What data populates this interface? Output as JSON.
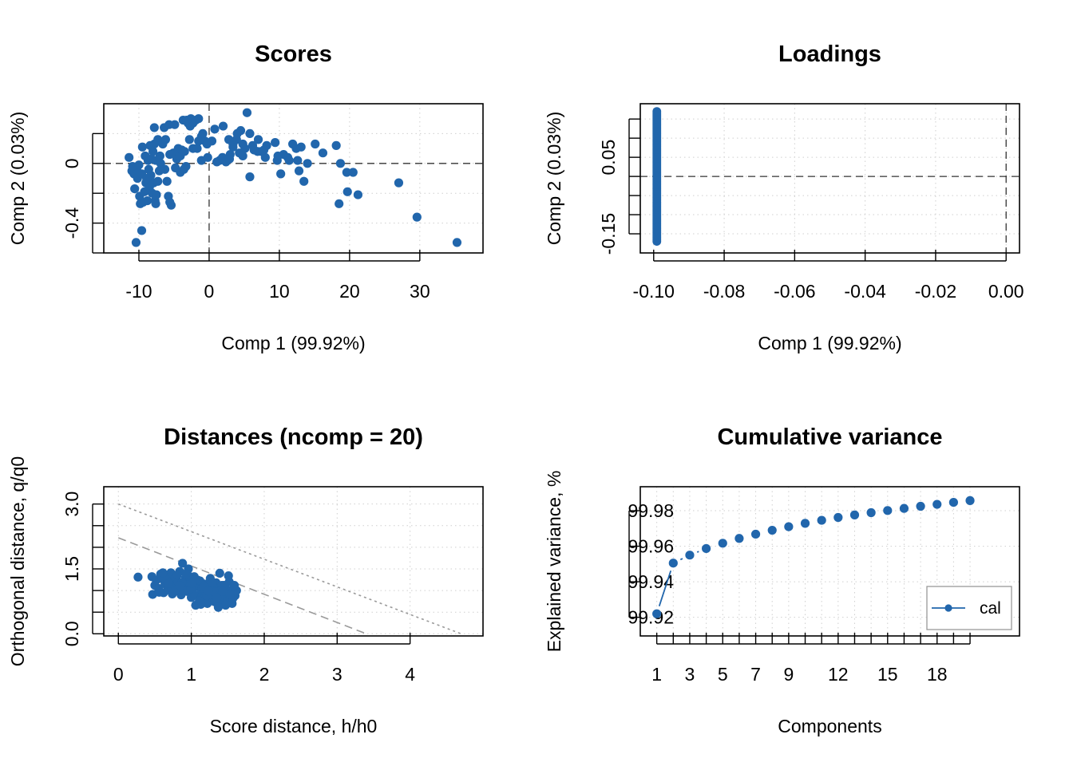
{
  "colors": {
    "series": "#2166ac",
    "limit": "#9a9a9a",
    "reference": "#333333"
  },
  "chart_data": [
    {
      "type": "scatter",
      "title": "Scores",
      "xlabel": "Comp 1 (99.92%)",
      "ylabel": "Comp 2 (0.03%)",
      "xlim": [
        -15,
        39
      ],
      "ylim": [
        -0.6,
        0.4
      ],
      "xticks": [
        -10,
        0,
        10,
        20,
        30
      ],
      "yticks": [
        -0.4,
        0.0
      ],
      "yticks_minor": [
        -0.6,
        -0.4,
        -0.2,
        0.0,
        0.2
      ],
      "reference_lines": {
        "x": 0,
        "y": 0
      },
      "grid": true,
      "points": [
        [
          -11.4,
          0.04
        ],
        [
          -11.0,
          -0.05
        ],
        [
          -10.7,
          -0.07
        ],
        [
          -10.6,
          -0.17
        ],
        [
          -10.3,
          -0.04
        ],
        [
          -10.2,
          -0.1
        ],
        [
          -10.0,
          -0.01
        ],
        [
          -9.9,
          -0.22
        ],
        [
          -9.6,
          -0.07
        ],
        [
          -9.4,
          -0.26
        ],
        [
          -9.2,
          -0.19
        ],
        [
          -9.0,
          -0.13
        ],
        [
          -8.8,
          -0.25
        ],
        [
          -8.6,
          -0.04
        ],
        [
          -8.5,
          -0.16
        ],
        [
          -8.3,
          -0.08
        ],
        [
          -8.1,
          -0.2
        ],
        [
          -7.9,
          -0.13
        ],
        [
          -7.7,
          -0.25
        ],
        [
          -7.6,
          -0.27
        ],
        [
          -7.5,
          -0.21
        ],
        [
          -7.3,
          -0.12
        ],
        [
          -9.5,
          0.11
        ],
        [
          -9.1,
          0.05
        ],
        [
          -8.7,
          0.02
        ],
        [
          -8.4,
          0.12
        ],
        [
          -8.2,
          0.03
        ],
        [
          -8.0,
          0.08
        ],
        [
          -7.8,
          0.13
        ],
        [
          -7.6,
          0.02
        ],
        [
          -7.3,
          0.16
        ],
        [
          -6.9,
          0.0
        ],
        [
          -6.6,
          0.13
        ],
        [
          -6.3,
          -0.04
        ],
        [
          -6.0,
          -0.12
        ],
        [
          -5.8,
          -0.22
        ],
        [
          -5.6,
          -0.26
        ],
        [
          -5.4,
          -0.28
        ],
        [
          -7.8,
          0.24
        ],
        [
          -6.4,
          0.24
        ],
        [
          -5.7,
          0.26
        ],
        [
          -4.9,
          0.26
        ],
        [
          -4.4,
          0.1
        ],
        [
          -4.1,
          0.05
        ],
        [
          -3.7,
          0.29
        ],
        [
          -3.3,
          -0.02
        ],
        [
          -3.0,
          0.27
        ],
        [
          -2.6,
          0.3
        ],
        [
          -2.3,
          0.27
        ],
        [
          -1.9,
          0.29
        ],
        [
          -1.5,
          0.3
        ],
        [
          -5.6,
          0.06
        ],
        [
          -5.1,
          0.07
        ],
        [
          -4.6,
          0.03
        ],
        [
          -4.2,
          0.05
        ],
        [
          -3.9,
          0.09
        ],
        [
          -3.5,
          0.08
        ],
        [
          -2.8,
          0.16
        ],
        [
          -2.3,
          0.1
        ],
        [
          -1.7,
          0.1
        ],
        [
          -1.1,
          0.18
        ],
        [
          -0.6,
          0.15
        ],
        [
          -0.3,
          0.13
        ],
        [
          0.4,
          0.15
        ],
        [
          -4.8,
          -0.03
        ],
        [
          -4.1,
          -0.06
        ],
        [
          -3.6,
          -0.04
        ],
        [
          -1.1,
          0.02
        ],
        [
          -0.2,
          0.04
        ],
        [
          0.8,
          0.23
        ],
        [
          1.1,
          0.01
        ],
        [
          1.9,
          0.04
        ],
        [
          2.4,
          0.01
        ],
        [
          2.8,
          0.16
        ],
        [
          3.4,
          0.11
        ],
        [
          4.0,
          0.2
        ],
        [
          4.5,
          0.22
        ],
        [
          4.3,
          0.07
        ],
        [
          5.1,
          0.1
        ],
        [
          5.4,
          0.34
        ],
        [
          5.8,
          -0.09
        ],
        [
          6.4,
          0.09
        ],
        [
          7.0,
          0.16
        ],
        [
          7.4,
          0.08
        ],
        [
          8.2,
          0.12
        ],
        [
          9.4,
          0.14
        ],
        [
          9.7,
          0.02
        ],
        [
          10.2,
          -0.07
        ],
        [
          10.6,
          0.06
        ],
        [
          11.2,
          0.04
        ],
        [
          11.9,
          0.13
        ],
        [
          12.4,
          0.1
        ],
        [
          12.8,
          -0.05
        ],
        [
          13.1,
          0.11
        ],
        [
          13.5,
          -0.12
        ],
        [
          15.1,
          0.13
        ],
        [
          16.2,
          0.07
        ],
        [
          18.1,
          0.12
        ],
        [
          18.7,
          0.0
        ],
        [
          19.6,
          -0.06
        ],
        [
          19.7,
          -0.19
        ],
        [
          20.5,
          -0.06
        ],
        [
          21.2,
          -0.21
        ],
        [
          18.5,
          -0.27
        ],
        [
          27.0,
          -0.13
        ],
        [
          29.6,
          -0.36
        ],
        [
          35.3,
          -0.53
        ],
        [
          -10.4,
          -0.53
        ],
        [
          -9.6,
          -0.45
        ],
        [
          -9.8,
          -0.27
        ],
        [
          2.0,
          0.25
        ],
        [
          3.4,
          0.13
        ],
        [
          -2.7,
          0.25
        ],
        [
          3.0,
          0.06
        ],
        [
          4.8,
          0.05
        ],
        [
          1.5,
          0.02
        ],
        [
          8.0,
          0.04
        ],
        [
          -0.9,
          0.2
        ],
        [
          6.2,
          0.12
        ],
        [
          3.9,
          0.16
        ],
        [
          -6.2,
          0.16
        ],
        [
          -7.0,
          0.05
        ],
        [
          -10.9,
          -0.02
        ],
        [
          -8.9,
          -0.1
        ],
        [
          -7.1,
          -0.05
        ],
        [
          9.8,
          0.05
        ],
        [
          11.4,
          0.02
        ],
        [
          4.8,
          0.13
        ],
        [
          2.9,
          0.03
        ],
        [
          5.8,
          0.2
        ],
        [
          7.8,
          0.09
        ],
        [
          14.0,
          0.0
        ],
        [
          -1.5,
          0.15
        ],
        [
          6.9,
          0.08
        ],
        [
          12.6,
          0.02
        ],
        [
          -3.2,
          0.29
        ]
      ]
    },
    {
      "type": "scatter",
      "title": "Loadings",
      "xlabel": "Comp 1 (99.92%)",
      "ylabel": "Comp 2 (0.03%)",
      "xlim": [
        -0.1038,
        0.0038
      ],
      "ylim": [
        -0.2,
        0.19
      ],
      "xticks": [
        -0.1,
        -0.08,
        -0.06,
        -0.04,
        -0.02,
        0.0
      ],
      "xtick_labels": [
        "-0.10",
        "-0.08",
        "-0.06",
        "-0.04",
        "-0.02",
        "0.00"
      ],
      "yticks": [
        -0.15,
        0.05
      ],
      "yticks_minor": [
        -0.15,
        -0.1,
        -0.05,
        0.0,
        0.05,
        0.1,
        0.15
      ],
      "reference_lines": {
        "x": 0,
        "y": 0
      },
      "grid": true,
      "x_value": -0.0991,
      "y_range": [
        -0.17,
        0.17
      ],
      "n_points": 90
    },
    {
      "type": "scatter",
      "title": "Distances (ncomp = 20)",
      "xlabel": "Score distance, h/h0",
      "ylabel": "Orthogonal distance, q/q0",
      "xlim": [
        -0.2,
        5.0
      ],
      "ylim": [
        -0.05,
        3.4
      ],
      "xticks": [
        0,
        1,
        2,
        3,
        4
      ],
      "yticks": [
        0.0,
        1.5,
        3.0
      ],
      "ytick_labels": [
        "0.0",
        "1.5",
        "3.0"
      ],
      "yticks_minor": [
        0.0,
        0.5,
        1.0,
        1.5,
        2.0,
        2.5,
        3.0
      ],
      "grid": true,
      "limit_lines": [
        {
          "style": "dashed",
          "x": [
            0,
            3.4
          ],
          "y": [
            2.22,
            0.0
          ]
        },
        {
          "style": "dotted",
          "x": [
            0,
            4.7
          ],
          "y": [
            3.0,
            0.0
          ]
        }
      ],
      "points": [
        [
          0.27,
          1.31
        ],
        [
          0.46,
          1.32
        ],
        [
          0.47,
          0.91
        ],
        [
          0.5,
          1.12
        ],
        [
          0.52,
          1.24
        ],
        [
          0.55,
          1.05
        ],
        [
          0.58,
          1.38
        ],
        [
          0.6,
          1.27
        ],
        [
          0.62,
          0.95
        ],
        [
          0.64,
          1.15
        ],
        [
          0.66,
          1.34
        ],
        [
          0.68,
          1.02
        ],
        [
          0.7,
          1.22
        ],
        [
          0.72,
          1.41
        ],
        [
          0.74,
          0.92
        ],
        [
          0.76,
          1.12
        ],
        [
          0.78,
          1.3
        ],
        [
          0.8,
          1.02
        ],
        [
          0.82,
          1.2
        ],
        [
          0.84,
          1.44
        ],
        [
          0.86,
          0.9
        ],
        [
          0.88,
          1.63
        ],
        [
          0.9,
          1.1
        ],
        [
          0.92,
          1.28
        ],
        [
          0.94,
          0.98
        ],
        [
          0.96,
          1.5
        ],
        [
          0.98,
          1.17
        ],
        [
          1.0,
          0.84
        ],
        [
          1.02,
          1.03
        ],
        [
          1.04,
          1.32
        ],
        [
          1.06,
          0.66
        ],
        [
          1.08,
          1.1
        ],
        [
          1.1,
          0.88
        ],
        [
          1.12,
          1.22
        ],
        [
          1.14,
          1.01
        ],
        [
          1.16,
          0.8
        ],
        [
          1.18,
          1.15
        ],
        [
          1.2,
          0.95
        ],
        [
          1.22,
          0.7
        ],
        [
          1.24,
          1.05
        ],
        [
          1.26,
          1.28
        ],
        [
          1.28,
          0.85
        ],
        [
          1.3,
          1.0
        ],
        [
          1.32,
          0.74
        ],
        [
          1.34,
          1.18
        ],
        [
          1.36,
          0.9
        ],
        [
          1.38,
          1.05
        ],
        [
          1.4,
          0.78
        ],
        [
          1.42,
          1.12
        ],
        [
          1.44,
          0.95
        ],
        [
          1.46,
          0.84
        ],
        [
          1.48,
          1.02
        ],
        [
          1.5,
          0.75
        ],
        [
          1.52,
          1.2
        ],
        [
          1.54,
          0.93
        ],
        [
          1.56,
          0.7
        ],
        [
          1.58,
          1.05
        ],
        [
          1.6,
          0.88
        ],
        [
          1.62,
          1.0
        ],
        [
          0.65,
          1.26
        ],
        [
          0.73,
          1.06
        ],
        [
          0.81,
          1.36
        ],
        [
          0.87,
          1.18
        ],
        [
          0.91,
          0.99
        ],
        [
          0.97,
          1.33
        ],
        [
          1.03,
          0.93
        ],
        [
          1.09,
          1.24
        ],
        [
          1.15,
          1.06
        ],
        [
          1.21,
          0.88
        ],
        [
          1.27,
          1.1
        ],
        [
          1.33,
          0.97
        ],
        [
          1.39,
          1.4
        ],
        [
          1.45,
          1.12
        ],
        [
          1.51,
          1.34
        ],
        [
          1.57,
          0.82
        ],
        [
          0.69,
          1.16
        ],
        [
          0.77,
          0.98
        ],
        [
          0.85,
          1.11
        ],
        [
          0.93,
          1.39
        ],
        [
          0.99,
          1.04
        ],
        [
          1.05,
          1.25
        ],
        [
          1.11,
          0.76
        ],
        [
          1.17,
          1.09
        ],
        [
          1.23,
          0.99
        ],
        [
          1.29,
          1.18
        ],
        [
          1.35,
          0.83
        ],
        [
          1.41,
          1.01
        ],
        [
          1.47,
          0.66
        ],
        [
          1.53,
          0.91
        ],
        [
          0.56,
          0.96
        ],
        [
          0.61,
          1.41
        ],
        [
          1.13,
          0.68
        ],
        [
          1.37,
          0.61
        ],
        [
          1.43,
          0.98
        ],
        [
          1.59,
          1.12
        ],
        [
          1.01,
          1.17
        ]
      ]
    },
    {
      "type": "line",
      "title": "Cumulative variance",
      "xlabel": "Components",
      "ylabel": "Explained variance, %",
      "xlim": [
        0,
        23
      ],
      "ylim": [
        99.9095,
        99.9935
      ],
      "xticks": [
        1,
        3,
        5,
        7,
        9,
        12,
        15,
        18
      ],
      "xticks_minor": [
        1,
        2,
        3,
        4,
        5,
        6,
        7,
        8,
        9,
        10,
        11,
        12,
        13,
        14,
        15,
        16,
        17,
        18,
        19,
        20
      ],
      "yticks": [
        99.92,
        99.94,
        99.96,
        99.98
      ],
      "ytick_labels": [
        "99.92",
        "99.94",
        "99.96",
        "99.98"
      ],
      "grid": true,
      "legend_position": "bottom-right",
      "series": [
        {
          "name": "cal",
          "x": [
            1,
            2,
            3,
            4,
            5,
            6,
            7,
            8,
            9,
            10,
            11,
            12,
            13,
            14,
            15,
            16,
            17,
            18,
            19,
            20
          ],
          "values": [
            99.922,
            99.9505,
            99.955,
            99.9587,
            99.9617,
            99.9644,
            99.9668,
            99.969,
            99.971,
            99.9729,
            99.9746,
            99.9762,
            99.9776,
            99.9789,
            99.9801,
            99.9813,
            99.9825,
            99.9836,
            99.9847,
            99.9857
          ]
        }
      ]
    }
  ]
}
